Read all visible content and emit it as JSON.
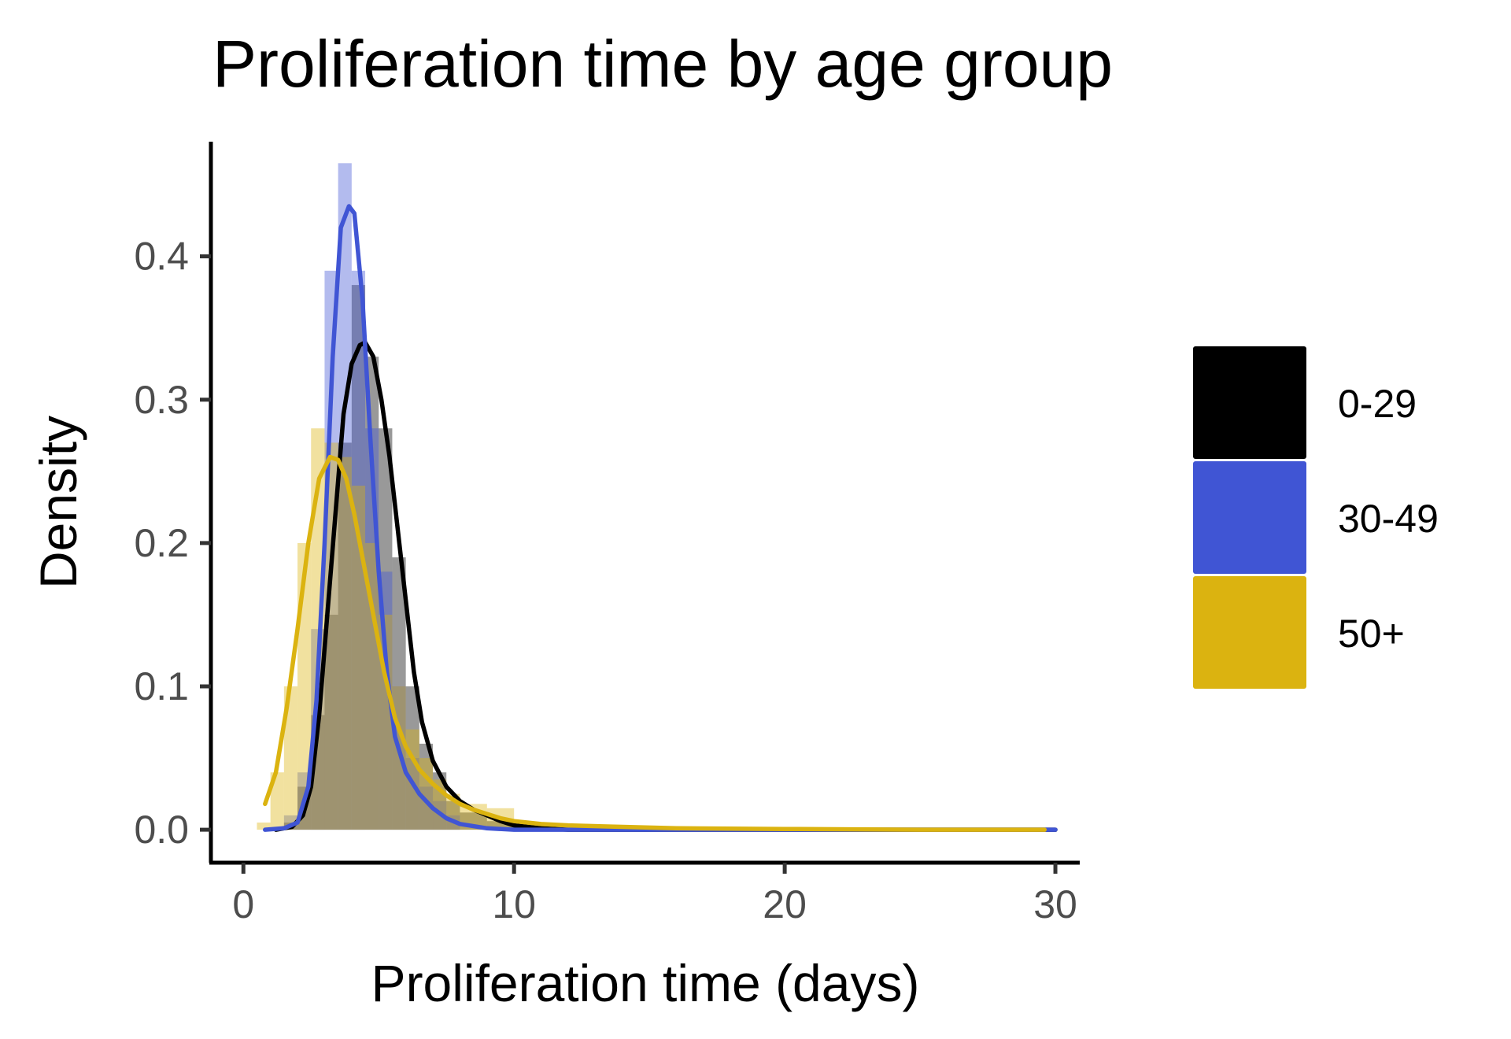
{
  "chart_data": {
    "type": "histogram-density",
    "title": "Proliferation time by age group",
    "xlabel": "Proliferation time (days)",
    "ylabel": "Density",
    "xlim": [
      -1.2,
      30.9
    ],
    "ylim": [
      -0.023,
      0.48
    ],
    "x_ticks": [
      0,
      10,
      20,
      30
    ],
    "x_tick_labels": [
      "0",
      "10",
      "20",
      "30"
    ],
    "y_ticks": [
      0.0,
      0.1,
      0.2,
      0.3,
      0.4
    ],
    "y_tick_labels": [
      "0.0",
      "0.1",
      "0.2",
      "0.3",
      "0.4"
    ],
    "grid": false,
    "legend_position": "right",
    "series": [
      {
        "name": "0-29",
        "color": "#000000",
        "hist_bins": [
          {
            "x0": 1.5,
            "x1": 2.0,
            "density": 0.005
          },
          {
            "x0": 2.0,
            "x1": 2.5,
            "density": 0.03
          },
          {
            "x0": 2.5,
            "x1": 3.0,
            "density": 0.08
          },
          {
            "x0": 3.0,
            "x1": 3.5,
            "density": 0.15
          },
          {
            "x0": 3.5,
            "x1": 4.0,
            "density": 0.27
          },
          {
            "x0": 4.0,
            "x1": 4.5,
            "density": 0.38
          },
          {
            "x0": 4.5,
            "x1": 5.0,
            "density": 0.33
          },
          {
            "x0": 5.0,
            "x1": 5.5,
            "density": 0.28
          },
          {
            "x0": 5.5,
            "x1": 6.0,
            "density": 0.19
          },
          {
            "x0": 6.0,
            "x1": 6.5,
            "density": 0.1
          },
          {
            "x0": 6.5,
            "x1": 7.0,
            "density": 0.06
          },
          {
            "x0": 7.0,
            "x1": 7.5,
            "density": 0.04
          },
          {
            "x0": 7.5,
            "x1": 8.0,
            "density": 0.02
          },
          {
            "x0": 8.0,
            "x1": 9.0,
            "density": 0.012
          },
          {
            "x0": 9.0,
            "x1": 10.0,
            "density": 0.006
          }
        ],
        "density_curve": [
          [
            1.2,
            0.0
          ],
          [
            1.8,
            0.002
          ],
          [
            2.2,
            0.01
          ],
          [
            2.5,
            0.03
          ],
          [
            2.8,
            0.08
          ],
          [
            3.1,
            0.15
          ],
          [
            3.4,
            0.22
          ],
          [
            3.7,
            0.29
          ],
          [
            4.0,
            0.325
          ],
          [
            4.3,
            0.338
          ],
          [
            4.5,
            0.34
          ],
          [
            4.8,
            0.33
          ],
          [
            5.1,
            0.3
          ],
          [
            5.4,
            0.26
          ],
          [
            5.7,
            0.21
          ],
          [
            6.0,
            0.16
          ],
          [
            6.3,
            0.11
          ],
          [
            6.6,
            0.075
          ],
          [
            7.0,
            0.048
          ],
          [
            7.5,
            0.03
          ],
          [
            8.0,
            0.02
          ],
          [
            8.5,
            0.014
          ],
          [
            9.0,
            0.01
          ],
          [
            9.5,
            0.006
          ],
          [
            10.0,
            0.003
          ],
          [
            11.0,
            0.001
          ],
          [
            12.0,
            0.0
          ],
          [
            30.0,
            0.0
          ]
        ]
      },
      {
        "name": "30-49",
        "color": "#4055d4",
        "hist_bins": [
          {
            "x0": 1.5,
            "x1": 2.0,
            "density": 0.01
          },
          {
            "x0": 2.0,
            "x1": 2.5,
            "density": 0.04
          },
          {
            "x0": 2.5,
            "x1": 3.0,
            "density": 0.14
          },
          {
            "x0": 3.0,
            "x1": 3.5,
            "density": 0.39
          },
          {
            "x0": 3.5,
            "x1": 4.0,
            "density": 0.465
          },
          {
            "x0": 4.0,
            "x1": 4.5,
            "density": 0.39
          },
          {
            "x0": 4.5,
            "x1": 5.0,
            "density": 0.28
          },
          {
            "x0": 5.0,
            "x1": 5.5,
            "density": 0.18
          },
          {
            "x0": 5.5,
            "x1": 6.0,
            "density": 0.1
          },
          {
            "x0": 6.0,
            "x1": 6.5,
            "density": 0.05
          },
          {
            "x0": 6.5,
            "x1": 7.0,
            "density": 0.03
          },
          {
            "x0": 7.0,
            "x1": 7.5,
            "density": 0.02
          },
          {
            "x0": 7.5,
            "x1": 8.0,
            "density": 0.01
          }
        ],
        "density_curve": [
          [
            0.8,
            0.0
          ],
          [
            1.5,
            0.001
          ],
          [
            2.0,
            0.005
          ],
          [
            2.4,
            0.03
          ],
          [
            2.7,
            0.09
          ],
          [
            3.0,
            0.2
          ],
          [
            3.3,
            0.33
          ],
          [
            3.6,
            0.42
          ],
          [
            3.9,
            0.435
          ],
          [
            4.1,
            0.43
          ],
          [
            4.4,
            0.37
          ],
          [
            4.7,
            0.27
          ],
          [
            5.0,
            0.18
          ],
          [
            5.3,
            0.11
          ],
          [
            5.6,
            0.065
          ],
          [
            6.0,
            0.04
          ],
          [
            6.5,
            0.025
          ],
          [
            7.0,
            0.015
          ],
          [
            7.5,
            0.008
          ],
          [
            8.0,
            0.004
          ],
          [
            9.0,
            0.001
          ],
          [
            10.0,
            0.0
          ],
          [
            30.0,
            0.0
          ]
        ]
      },
      {
        "name": "50+",
        "color": "#dbb310",
        "hist_bins": [
          {
            "x0": 0.5,
            "x1": 1.0,
            "density": 0.005
          },
          {
            "x0": 1.0,
            "x1": 1.5,
            "density": 0.04
          },
          {
            "x0": 1.5,
            "x1": 2.0,
            "density": 0.1
          },
          {
            "x0": 2.0,
            "x1": 2.5,
            "density": 0.2
          },
          {
            "x0": 2.5,
            "x1": 3.0,
            "density": 0.28
          },
          {
            "x0": 3.0,
            "x1": 3.5,
            "density": 0.27
          },
          {
            "x0": 3.5,
            "x1": 4.0,
            "density": 0.26
          },
          {
            "x0": 4.0,
            "x1": 4.5,
            "density": 0.24
          },
          {
            "x0": 4.5,
            "x1": 5.0,
            "density": 0.2
          },
          {
            "x0": 5.0,
            "x1": 5.5,
            "density": 0.15
          },
          {
            "x0": 5.5,
            "x1": 6.0,
            "density": 0.1
          },
          {
            "x0": 6.0,
            "x1": 6.5,
            "density": 0.07
          },
          {
            "x0": 6.5,
            "x1": 7.0,
            "density": 0.05
          },
          {
            "x0": 7.0,
            "x1": 7.5,
            "density": 0.035
          },
          {
            "x0": 7.5,
            "x1": 8.0,
            "density": 0.025
          },
          {
            "x0": 8.0,
            "x1": 9.0,
            "density": 0.018
          },
          {
            "x0": 9.0,
            "x1": 10.0,
            "density": 0.015
          },
          {
            "x0": 10.0,
            "x1": 11.0,
            "density": 0.005
          },
          {
            "x0": 11.0,
            "x1": 12.0,
            "density": 0.003
          }
        ],
        "density_curve": [
          [
            0.8,
            0.018
          ],
          [
            1.2,
            0.04
          ],
          [
            1.6,
            0.085
          ],
          [
            2.0,
            0.14
          ],
          [
            2.4,
            0.2
          ],
          [
            2.8,
            0.245
          ],
          [
            3.2,
            0.26
          ],
          [
            3.5,
            0.258
          ],
          [
            3.8,
            0.245
          ],
          [
            4.1,
            0.22
          ],
          [
            4.4,
            0.19
          ],
          [
            4.8,
            0.15
          ],
          [
            5.2,
            0.11
          ],
          [
            5.6,
            0.078
          ],
          [
            6.0,
            0.058
          ],
          [
            6.5,
            0.042
          ],
          [
            7.0,
            0.032
          ],
          [
            7.5,
            0.024
          ],
          [
            8.0,
            0.018
          ],
          [
            8.5,
            0.014
          ],
          [
            9.0,
            0.011
          ],
          [
            9.5,
            0.008
          ],
          [
            10.0,
            0.006
          ],
          [
            11.0,
            0.004
          ],
          [
            12.0,
            0.003
          ],
          [
            14.0,
            0.002
          ],
          [
            16.0,
            0.001
          ],
          [
            20.0,
            0.0005
          ],
          [
            25.0,
            0.0
          ],
          [
            29.6,
            0.0
          ]
        ]
      }
    ]
  }
}
